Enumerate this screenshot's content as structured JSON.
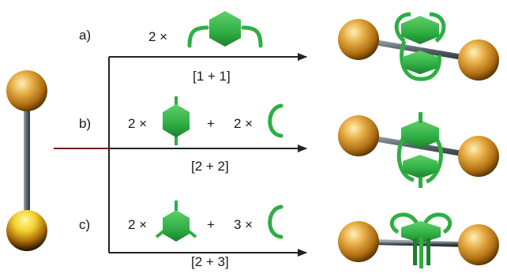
{
  "reactions": [
    {
      "letter": "a)",
      "prefix1": "2 ×",
      "plus": "",
      "prefix2": "",
      "label": "[1 + 1]"
    },
    {
      "letter": "b)",
      "prefix1": "2 ×",
      "plus": "+",
      "prefix2": "2 ×",
      "label": "[2 + 2]"
    },
    {
      "letter": "c)",
      "prefix1": "2 ×",
      "plus": "+",
      "prefix2": "3 ×",
      "label": "[2 + 3]"
    }
  ],
  "colors": {
    "green": "#2fae43",
    "green_dark": "#1c7f2e",
    "gold": "#d99a2b",
    "rod": "#6b7a80",
    "arrow": "#222222",
    "stub": "#7a1d1d"
  }
}
